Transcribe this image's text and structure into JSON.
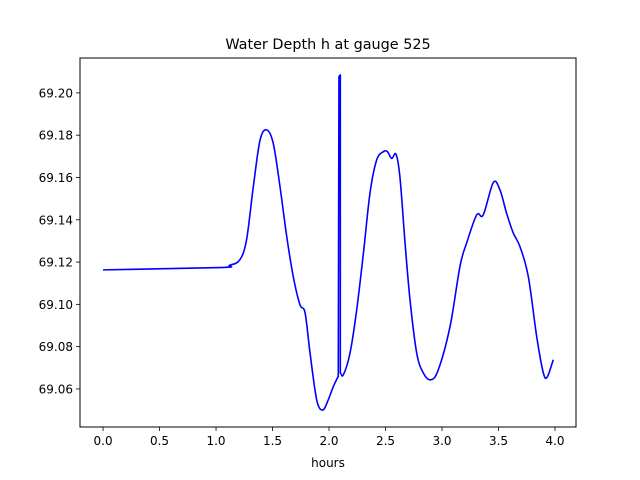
{
  "chart_data": {
    "type": "line",
    "title": "Water Depth h at gauge 525",
    "xlabel": "hours",
    "ylabel": "",
    "xlim": [
      -0.204,
      4.186
    ],
    "ylim": [
      69.042,
      69.2165
    ],
    "xticks": [
      0.0,
      0.5,
      1.0,
      1.5,
      2.0,
      2.5,
      3.0,
      3.5,
      4.0
    ],
    "xtick_labels": [
      "0.0",
      "0.5",
      "1.0",
      "1.5",
      "2.0",
      "2.5",
      "3.0",
      "3.5",
      "4.0"
    ],
    "yticks": [
      69.06,
      69.08,
      69.1,
      69.12,
      69.14,
      69.16,
      69.18,
      69.2
    ],
    "ytick_labels": [
      "69.06",
      "69.08",
      "69.10",
      "69.12",
      "69.14",
      "69.16",
      "69.18",
      "69.20"
    ],
    "grid": false,
    "series": [
      {
        "name": "h",
        "color": "#0000ff",
        "x": [
          0,
          1.035,
          1.12,
          1.21,
          1.27,
          1.33,
          1.39,
          1.449,
          1.507,
          1.566,
          1.626,
          1.684,
          1.743,
          1.788,
          1.832,
          1.891,
          1.944,
          1.993,
          2.037,
          2.082,
          2.088,
          2.1,
          2.1,
          2.127,
          2.186,
          2.245,
          2.304,
          2.363,
          2.422,
          2.481,
          2.517,
          2.555,
          2.593,
          2.628,
          2.673,
          2.717,
          2.776,
          2.834,
          2.9,
          2.967,
          3.071,
          3.159,
          3.218,
          3.307,
          3.365,
          3.454,
          3.513,
          3.572,
          3.631,
          3.69,
          3.764,
          3.838,
          3.897,
          3.932,
          3.985
        ],
        "y": [
          69.1163,
          69.1174,
          69.1185,
          69.121,
          69.1305,
          69.1557,
          69.1778,
          69.1825,
          69.176,
          69.1557,
          69.132,
          69.113,
          69.0998,
          69.096,
          69.077,
          69.0548,
          69.05,
          69.0548,
          69.061,
          69.066,
          69.2077,
          69.2085,
          69.0676,
          69.0667,
          69.077,
          69.0974,
          69.124,
          69.1527,
          69.1683,
          69.1722,
          69.1722,
          69.169,
          69.171,
          69.16,
          69.129,
          69.102,
          69.077,
          69.0676,
          69.0643,
          69.069,
          69.0895,
          69.118,
          69.129,
          69.1423,
          69.1423,
          69.1576,
          69.1541,
          69.143,
          69.1337,
          69.1273,
          69.1131,
          69.0848,
          69.0676,
          69.0657,
          69.0738
        ]
      }
    ]
  }
}
